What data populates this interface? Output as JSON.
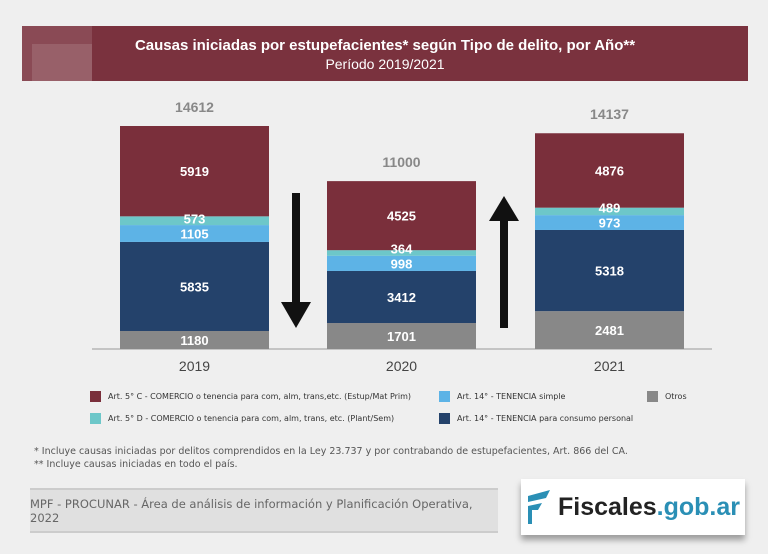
{
  "chart_data": {
    "type": "bar",
    "stacked": true,
    "title": "Causas iniciadas por estupefacientes* según Tipo de delito, por Año**",
    "subtitle": "Período 2019/2021",
    "categories": [
      "2019",
      "2020",
      "2021"
    ],
    "totals": [
      14612,
      11000,
      14137
    ],
    "series": [
      {
        "name": "Otros",
        "color": "#888888",
        "values": [
          1180,
          1701,
          2481
        ]
      },
      {
        "name": "Art. 14° - TENENCIA para consumo personal",
        "color": "#24426b",
        "values": [
          5835,
          3412,
          5318
        ]
      },
      {
        "name": "Art. 14° - TENENCIA simple",
        "color": "#5db3e6",
        "values": [
          1105,
          998,
          973
        ]
      },
      {
        "name": "Art. 5° D - COMERCIO o tenencia para com, alm, trans, etc. (Plant/Sem)",
        "color": "#6dc7c9",
        "values": [
          573,
          364,
          489
        ]
      },
      {
        "name": "Art. 5° C - COMERCIO o tenencia para com, alm, trans,etc. (Estup/Mat Prim)",
        "color": "#7a2f3b",
        "values": [
          5919,
          4525,
          4876
        ]
      }
    ],
    "trend_arrows": [
      "down",
      "up"
    ],
    "legend_placement": "bottom",
    "grid": false
  },
  "notes": [
    "* Incluye causas iniciadas por delitos comprendidos en la Ley 23.737 y por contrabando de estupefacientes, Art. 866 del CA.",
    "** Incluye causas iniciadas en todo el país."
  ],
  "source": "MPF - PROCUNAR - Área de análisis de información y Planificación Operativa, 2022",
  "logo": {
    "text1": "Fiscales",
    "text2": ".gob.ar",
    "color": "#2a8fb5"
  }
}
